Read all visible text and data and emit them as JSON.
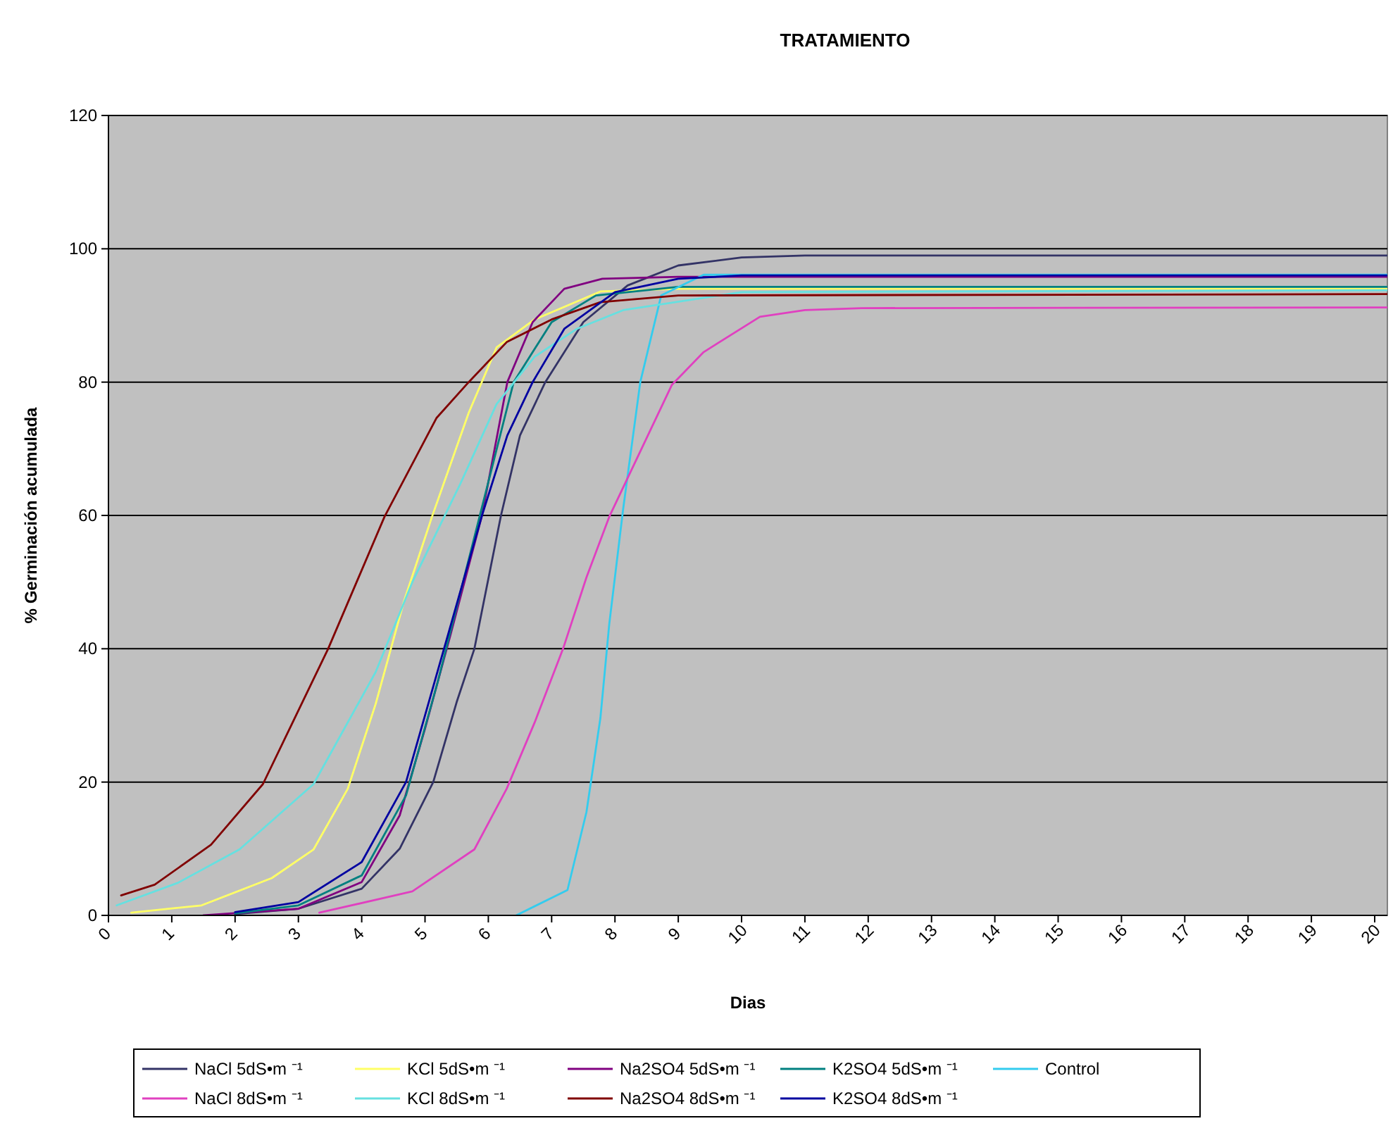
{
  "chart_data": {
    "type": "line",
    "title": "TRATAMIENTO",
    "xlabel": "Dias",
    "ylabel": "% Germinación acumulada",
    "xlim": [
      0,
      20.2
    ],
    "xticks": [
      0,
      1,
      2,
      3,
      4,
      5,
      6,
      7,
      8,
      9,
      10,
      11,
      12,
      13,
      14,
      15,
      16,
      17,
      18,
      19,
      20
    ],
    "ylim": [
      0,
      120
    ],
    "yticks": [
      0,
      20,
      40,
      60,
      80,
      100,
      120
    ],
    "grid": "y",
    "legend": "bottom",
    "line_style": "solid",
    "series": [
      {
        "name": "NaCl 5dS•m ⁻¹",
        "color": "#333366",
        "x": [
          2,
          3,
          4,
          4.6,
          5.13,
          5.5,
          5.78,
          6.2,
          6.5,
          6.9,
          7.5,
          8.2,
          9,
          10,
          11,
          20.2
        ],
        "values": [
          0.2,
          1,
          4,
          10,
          20,
          32,
          40,
          60,
          72,
          80,
          89,
          94.5,
          97.5,
          98.7,
          99,
          99
        ]
      },
      {
        "name": "KCl 5dS•m ⁻¹",
        "color": "#ffff66",
        "x": [
          0.36,
          1.47,
          2.58,
          3.24,
          3.78,
          4.22,
          4.67,
          5.11,
          5.69,
          6.13,
          6.73,
          7.77,
          9,
          20.2
        ],
        "values": [
          0.4,
          1.5,
          5.6,
          9.9,
          19,
          31.7,
          47.2,
          59.8,
          75.4,
          85.2,
          89.4,
          93.6,
          94,
          94
        ]
      },
      {
        "name": "Na2SO4 5dS•m ⁻¹",
        "color": "#800080",
        "x": [
          1.5,
          3,
          4,
          4.6,
          5,
          5.4,
          5.9,
          6.3,
          6.7,
          7.2,
          7.8,
          9,
          20.2
        ],
        "values": [
          0,
          1,
          5,
          15,
          28,
          42,
          60,
          80,
          89,
          94,
          95.5,
          95.8,
          95.8
        ]
      },
      {
        "name": "K2SO4 5dS•m ⁻¹",
        "color": "#008080",
        "x": [
          2,
          3,
          4,
          4.7,
          5.2,
          5.6,
          6,
          6.4,
          7,
          7.7,
          9,
          20.2
        ],
        "values": [
          0.3,
          1.5,
          6,
          18,
          35,
          50,
          65,
          80,
          89,
          93,
          94.3,
          94.3
        ]
      },
      {
        "name": "Control",
        "color": "#33ccee",
        "x": [
          6.44,
          7.25,
          7.55,
          7.77,
          7.91,
          8.13,
          8.4,
          8.73,
          9.4,
          20.2
        ],
        "values": [
          0,
          3.8,
          15.5,
          29.6,
          43.7,
          61,
          80,
          93,
          96.1,
          96.1
        ]
      },
      {
        "name": "NaCl 8dS•m ⁻¹",
        "color": "#e040c0",
        "x": [
          3.33,
          4.8,
          5.78,
          6.29,
          6.73,
          7.18,
          7.55,
          7.91,
          8.9,
          9.4,
          10.29,
          11,
          11.9,
          20.2
        ],
        "values": [
          0.4,
          3.6,
          9.9,
          19,
          28.9,
          40,
          50.7,
          59.8,
          79.6,
          84.5,
          89.8,
          90.8,
          91.1,
          91.2
        ]
      },
      {
        "name": "KCl 8dS•m ⁻¹",
        "color": "#66e0e0",
        "x": [
          0.13,
          1.1,
          2.07,
          3.24,
          4.22,
          4.8,
          5.56,
          6.13,
          6.73,
          7.4,
          8.13,
          10,
          20.2
        ],
        "values": [
          1.5,
          4.9,
          9.9,
          19.7,
          36.5,
          50,
          64.8,
          76.7,
          83.8,
          88,
          90.8,
          93.5,
          93.8
        ]
      },
      {
        "name": "Na2SO4 8dS•m ⁻¹",
        "color": "#800000",
        "x": [
          0.2,
          0.73,
          1.62,
          2.44,
          3.47,
          4.36,
          5.18,
          5.69,
          6.29,
          7,
          7.77,
          9,
          20.2
        ],
        "values": [
          3,
          4.6,
          10.6,
          19.7,
          40,
          59.8,
          74.6,
          80,
          86,
          89.4,
          92,
          93,
          93.2
        ]
      },
      {
        "name": "K2SO4 8dS•m ⁻¹",
        "color": "#0000a0",
        "x": [
          2,
          3,
          4,
          4.7,
          5.3,
          5.9,
          6.3,
          6.7,
          7.2,
          8,
          9,
          10,
          20.2
        ],
        "values": [
          0.5,
          2,
          8,
          20,
          40,
          60,
          72,
          80,
          88,
          93.5,
          95.5,
          96,
          96
        ]
      }
    ]
  }
}
